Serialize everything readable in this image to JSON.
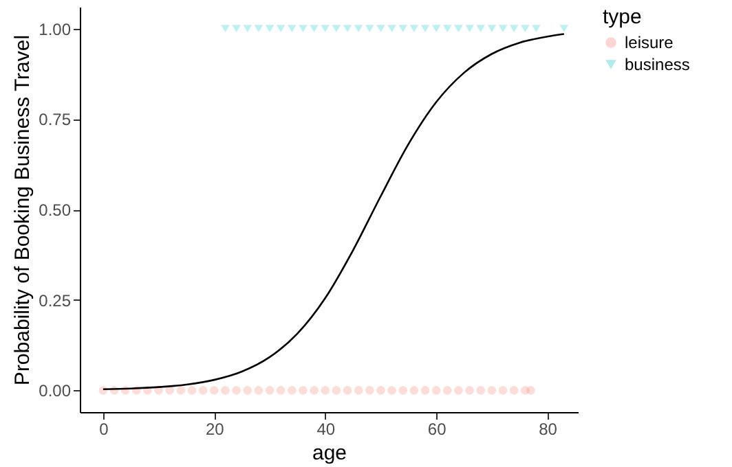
{
  "chart_data": {
    "type": "scatter",
    "xlabel": "age",
    "ylabel": "Probability of Booking Business Travel",
    "legend_title": "type",
    "legend": "right",
    "grid": false,
    "xlim": [
      -4.2,
      85.5
    ],
    "xticks": [
      0,
      20,
      40,
      60,
      80
    ],
    "ylim": [
      -0.06,
      1.06
    ],
    "yticks": [
      {
        "value": 0,
        "label": "0.00"
      },
      {
        "value": 0.25,
        "label": "0.25"
      },
      {
        "value": 0.5,
        "label": "0.50"
      },
      {
        "value": 0.75,
        "label": "0.75"
      },
      {
        "value": 1,
        "label": "1.00"
      }
    ],
    "series": [
      {
        "name": "leisure",
        "color": "#f8766d",
        "marker": "circle",
        "x": [
          0,
          2,
          4,
          6,
          8,
          10,
          12,
          14,
          16,
          18,
          20,
          22,
          24,
          26,
          28,
          30,
          32,
          34,
          36,
          38,
          40,
          42,
          44,
          46,
          48,
          50,
          52,
          54,
          56,
          58,
          60,
          62,
          64,
          66,
          68,
          70,
          72,
          74,
          76,
          77
        ],
        "values": [
          0,
          0,
          0,
          0,
          0,
          0,
          0,
          0,
          0,
          0,
          0,
          0,
          0,
          0,
          0,
          0,
          0,
          0,
          0,
          0,
          0,
          0,
          0,
          0,
          0,
          0,
          0,
          0,
          0,
          0,
          0,
          0,
          0,
          0,
          0,
          0,
          0,
          0,
          0,
          0
        ]
      },
      {
        "name": "business",
        "color": "#00bfc4",
        "marker": "triangle",
        "x": [
          22,
          24,
          26,
          28,
          30,
          32,
          34,
          36,
          38,
          40,
          42,
          44,
          46,
          48,
          50,
          52,
          54,
          56,
          58,
          60,
          62,
          64,
          66,
          68,
          70,
          72,
          74,
          76,
          78,
          83
        ],
        "values": [
          1,
          1,
          1,
          1,
          1,
          1,
          1,
          1,
          1,
          1,
          1,
          1,
          1,
          1,
          1,
          1,
          1,
          1,
          1,
          1,
          1,
          1,
          1,
          1,
          1,
          1,
          1,
          1,
          1,
          1
        ]
      },
      {
        "type": "line",
        "color": "#000000",
        "x": [
          0,
          5,
          10,
          15,
          20,
          25,
          30,
          35,
          40,
          45,
          50,
          55,
          60,
          65,
          70,
          75,
          80,
          83
        ],
        "values": [
          0.003,
          0.005,
          0.009,
          0.016,
          0.029,
          0.052,
          0.092,
          0.157,
          0.255,
          0.387,
          0.537,
          0.681,
          0.797,
          0.878,
          0.93,
          0.961,
          0.978,
          0.985
        ]
      }
    ]
  }
}
